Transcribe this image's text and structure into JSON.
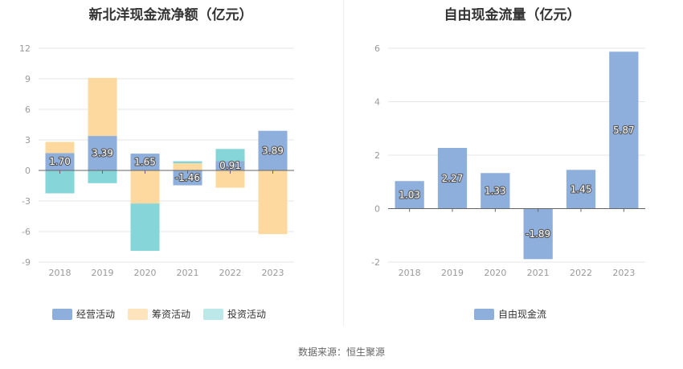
{
  "source": "数据来源：恒生聚源",
  "chart_data": [
    {
      "type": "bar",
      "stacked": true,
      "title": "新北洋现金流净额（亿元）",
      "categories": [
        "2018",
        "2019",
        "2020",
        "2021",
        "2022",
        "2023"
      ],
      "yticks": [
        "12",
        "9",
        "6",
        "3",
        "0",
        "-3",
        "-6",
        "-9"
      ],
      "ylim": [
        -9,
        12
      ],
      "grid": true,
      "legend_position": "bottom",
      "series": [
        {
          "name": "经营活动",
          "color": "#8eaedc",
          "values": [
            1.7,
            3.39,
            1.65,
            -1.46,
            0.91,
            3.89
          ],
          "labels": [
            "1.70",
            "3.39",
            "1.65",
            "-1.46",
            "0.91",
            "3.89"
          ]
        },
        {
          "name": "筹资活动",
          "color": "#fdd9a0",
          "values": [
            1.1,
            5.7,
            -3.25,
            0.7,
            -1.7,
            -6.25
          ]
        },
        {
          "name": "投资活动",
          "color": "#86d6d9",
          "values": [
            -2.25,
            -1.25,
            -4.65,
            0.2,
            1.2,
            0.0
          ]
        }
      ]
    },
    {
      "type": "bar",
      "title": "自由现金流量（亿元）",
      "categories": [
        "2018",
        "2019",
        "2020",
        "2021",
        "2022",
        "2023"
      ],
      "yticks": [
        "6",
        "4",
        "2",
        "0",
        "-2"
      ],
      "ylim": [
        -2,
        6
      ],
      "grid": true,
      "legend_position": "bottom",
      "series": [
        {
          "name": "自由现金流",
          "color": "#8eaedc",
          "values": [
            1.03,
            2.27,
            1.33,
            -1.89,
            1.45,
            5.87
          ],
          "labels": [
            "1.03",
            "2.27",
            "1.33",
            "-1.89",
            "1.45",
            "5.87"
          ]
        }
      ]
    }
  ]
}
